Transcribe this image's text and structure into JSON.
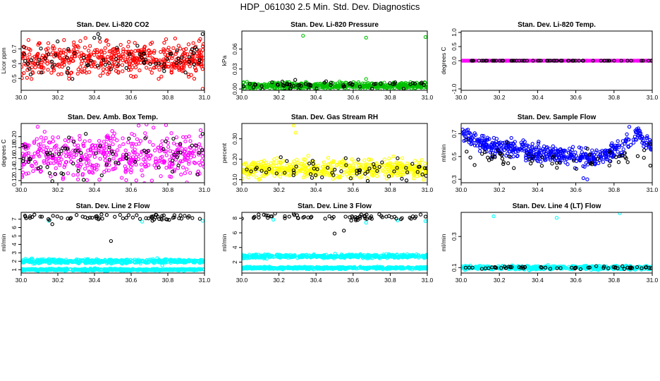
{
  "title": "HDP_061030  2.5 Min. Std. Dev. Diagnostics",
  "chart_data": [
    {
      "type": "scatter",
      "title": "Stan. Dev. Li-820 CO2",
      "ylabel": "Licor ppm",
      "xlim": [
        30.0,
        31.0
      ],
      "ylim": [
        0.42,
        0.82
      ],
      "xticks": [
        "30.0",
        "30.2",
        "30.4",
        "30.6",
        "30.8",
        "31.0"
      ],
      "yticks": [
        "0.5",
        "0.6",
        "0.7"
      ],
      "series": [
        {
          "color": "#ff0000",
          "count": 520,
          "baseline": [
            [
              30.0,
              0.62
            ],
            [
              30.5,
              0.63
            ],
            [
              31.0,
              0.64
            ]
          ],
          "spread": 0.055,
          "extra": [
            [
              30.04,
              0.76
            ],
            [
              30.62,
              0.74
            ],
            [
              30.84,
              0.77
            ],
            [
              30.99,
              0.43
            ],
            [
              30.48,
              0.54
            ],
            [
              30.22,
              0.53
            ]
          ]
        },
        {
          "color": "#000000",
          "count": 70,
          "baseline": [
            [
              30.0,
              0.62
            ],
            [
              31.0,
              0.63
            ]
          ],
          "spread": 0.06,
          "extra": [
            [
              30.42,
              0.8
            ],
            [
              30.99,
              0.8
            ],
            [
              30.11,
              0.54
            ],
            [
              30.78,
              0.55
            ]
          ]
        }
      ]
    },
    {
      "type": "scatter",
      "title": "Stan. Dev. Li-820 Pressure",
      "ylabel": "kPa",
      "xlim": [
        30.0,
        31.0
      ],
      "ylim": [
        -0.002,
        0.087
      ],
      "xticks": [
        "30.0",
        "30.2",
        "30.4",
        "30.6",
        "30.8",
        "31.0"
      ],
      "yticks": [
        "0.00",
        "0.03",
        "0.06"
      ],
      "series": [
        {
          "color": "#00c000",
          "count": 520,
          "baseline": [
            [
              30.0,
              0.0045
            ],
            [
              31.0,
              0.0055
            ]
          ],
          "spread": 0.0025,
          "extra": [
            [
              30.33,
              0.08
            ],
            [
              30.67,
              0.077
            ],
            [
              30.99,
              0.078
            ],
            [
              30.67,
              0.015
            ]
          ]
        },
        {
          "color": "#000000",
          "count": 60,
          "baseline": [
            [
              30.0,
              0.0045
            ],
            [
              31.0,
              0.006
            ]
          ],
          "spread": 0.003,
          "extra": []
        }
      ]
    },
    {
      "type": "scatter",
      "title": "Stan. Dev. Li-820 Temp.",
      "ylabel": "degrees C",
      "xlim": [
        30.0,
        31.0
      ],
      "ylim": [
        -1.05,
        1.05
      ],
      "xticks": [
        "30.0",
        "30.2",
        "30.4",
        "30.6",
        "30.8",
        "31.0"
      ],
      "yticks": [
        "-1.0",
        "0.0",
        "0.5",
        "1.0"
      ],
      "series": [
        {
          "color": "#ff00ff",
          "count": 400,
          "baseline": [
            [
              30.0,
              0.0
            ],
            [
              31.0,
              0.0
            ]
          ],
          "spread": 0.0,
          "extra": []
        },
        {
          "color": "#000000",
          "count": 70,
          "baseline": [
            [
              30.0,
              0.0
            ],
            [
              31.0,
              0.0
            ]
          ],
          "spread": 0.0,
          "extra": []
        }
      ]
    },
    {
      "type": "scatter",
      "title": "Stan. Dev. Amb. Box Temp.",
      "ylabel": "degrees C",
      "xlim": [
        30.0,
        31.0
      ],
      "ylim": [
        0.116,
        0.224
      ],
      "xticks": [
        "30.0",
        "30.2",
        "30.4",
        "30.6",
        "30.8",
        "31.0"
      ],
      "yticks": [
        "0.12",
        "0.14",
        "0.16",
        "0.18",
        "0.20"
      ],
      "series": [
        {
          "color": "#ff00ff",
          "count": 480,
          "baseline": [
            [
              30.0,
              0.165
            ],
            [
              31.0,
              0.166
            ]
          ],
          "spread": 0.02,
          "extra": [
            [
              30.09,
              0.218
            ],
            [
              30.79,
              0.221
            ],
            [
              30.31,
              0.122
            ]
          ]
        },
        {
          "color": "#000000",
          "count": 70,
          "baseline": [
            [
              30.0,
              0.165
            ],
            [
              31.0,
              0.167
            ]
          ],
          "spread": 0.021,
          "extra": [
            [
              30.17,
              0.119
            ],
            [
              30.99,
              0.205
            ]
          ]
        }
      ]
    },
    {
      "type": "scatter",
      "title": "Stan. Dev. Gas Stream RH",
      "ylabel": "percent",
      "xlim": [
        30.0,
        31.0
      ],
      "ylim": [
        0.085,
        0.375
      ],
      "xticks": [
        "30.0",
        "30.2",
        "30.4",
        "30.6",
        "30.8",
        "31.0"
      ],
      "yticks": [
        "0.10",
        "0.20",
        "0.30"
      ],
      "series": [
        {
          "color": "#ffff00",
          "count": 520,
          "baseline": [
            [
              30.0,
              0.15
            ],
            [
              31.0,
              0.155
            ]
          ],
          "spread": 0.022,
          "extra": [
            [
              30.28,
              0.365
            ],
            [
              30.29,
              0.33
            ],
            [
              30.98,
              0.1
            ]
          ]
        },
        {
          "color": "#000000",
          "count": 60,
          "baseline": [
            [
              30.0,
              0.15
            ],
            [
              31.0,
              0.155
            ]
          ],
          "spread": 0.025,
          "extra": [
            [
              30.21,
              0.21
            ],
            [
              30.56,
              0.205
            ],
            [
              30.84,
              0.205
            ]
          ]
        }
      ]
    },
    {
      "type": "scatter",
      "title": "Stan. Dev. Sample Flow",
      "ylabel": "ml/min",
      "xlim": [
        30.0,
        31.0
      ],
      "ylim": [
        0.27,
        0.79
      ],
      "xticks": [
        "30.0",
        "30.2",
        "30.4",
        "30.6",
        "30.8",
        "31.0"
      ],
      "yticks": [
        "0.3",
        "0.5",
        "0.7"
      ],
      "series": [
        {
          "color": "#0000ff",
          "count": 520,
          "baseline": [
            [
              30.0,
              0.72
            ],
            [
              30.1,
              0.61
            ],
            [
              30.3,
              0.56
            ],
            [
              30.5,
              0.52
            ],
            [
              30.7,
              0.48
            ],
            [
              30.85,
              0.59
            ],
            [
              30.92,
              0.7
            ],
            [
              31.0,
              0.58
            ]
          ],
          "spread": 0.038,
          "extra": [
            [
              30.64,
              0.31
            ],
            [
              30.66,
              0.3
            ],
            [
              30.88,
              0.76
            ]
          ]
        },
        {
          "color": "#000000",
          "count": 60,
          "baseline": [
            [
              30.0,
              0.55
            ],
            [
              30.5,
              0.45
            ],
            [
              31.0,
              0.5
            ]
          ],
          "spread": 0.05,
          "extra": [
            [
              30.99,
              0.42
            ]
          ]
        }
      ]
    },
    {
      "type": "scatter",
      "title": "Stan. Dev. Line 2 Flow",
      "ylabel": "ml/min",
      "xlim": [
        30.0,
        31.0
      ],
      "ylim": [
        0.6,
        7.8
      ],
      "xticks": [
        "30.0",
        "30.2",
        "30.4",
        "30.6",
        "30.8",
        "31.0"
      ],
      "yticks": [
        "1",
        "2",
        "3",
        "4",
        "5",
        "6",
        "7"
      ],
      "series": [
        {
          "color": "#00ffff",
          "count": 480,
          "baseline": [
            [
              30.0,
              2.0
            ],
            [
              31.0,
              2.0
            ]
          ],
          "spread": 0.12,
          "extra": [
            [
              30.77,
              1.5
            ],
            [
              30.66,
              6.7
            ],
            [
              30.99,
              6.8
            ],
            [
              30.15,
              6.8
            ]
          ]
        },
        {
          "color": "#00ffff",
          "count": 480,
          "baseline": [
            [
              30.0,
              1.0
            ],
            [
              31.0,
              1.0
            ]
          ],
          "spread": 0.06,
          "extra": []
        },
        {
          "color": "#000000",
          "count": 70,
          "baseline": [
            [
              30.0,
              7.25
            ],
            [
              31.0,
              7.25
            ]
          ],
          "spread": 0.18,
          "extra": [
            [
              30.49,
              4.4
            ],
            [
              30.17,
              6.4
            ]
          ]
        }
      ]
    },
    {
      "type": "scatter",
      "title": "Stan. Dev. Line 3 Flow",
      "ylabel": "ml/min",
      "xlim": [
        30.0,
        31.0
      ],
      "ylim": [
        0.5,
        8.8
      ],
      "xticks": [
        "30.0",
        "30.2",
        "30.4",
        "30.6",
        "30.8",
        "31.0"
      ],
      "yticks": [
        "2",
        "4",
        "6",
        "8"
      ],
      "series": [
        {
          "color": "#00ffff",
          "count": 480,
          "baseline": [
            [
              30.0,
              2.8
            ],
            [
              31.0,
              2.8
            ]
          ],
          "spread": 0.13,
          "extra": [
            [
              30.67,
              7.4
            ],
            [
              30.84,
              7.7
            ],
            [
              30.99,
              7.6
            ],
            [
              30.17,
              7.8
            ]
          ]
        },
        {
          "color": "#00ffff",
          "count": 480,
          "baseline": [
            [
              30.0,
              1.2
            ],
            [
              31.0,
              1.2
            ]
          ],
          "spread": 0.08,
          "extra": []
        },
        {
          "color": "#000000",
          "count": 70,
          "baseline": [
            [
              30.0,
              8.2
            ],
            [
              31.0,
              8.2
            ]
          ],
          "spread": 0.2,
          "extra": [
            [
              30.5,
              5.9
            ],
            [
              30.55,
              6.3
            ]
          ]
        }
      ]
    },
    {
      "type": "scatter",
      "title": "Stan. Dev. Line 4 (LT) Flow",
      "ylabel": "ml/min",
      "xlim": [
        30.0,
        31.0
      ],
      "ylim": [
        0.065,
        0.455
      ],
      "xticks": [
        "30.0",
        "30.2",
        "30.4",
        "30.6",
        "30.8",
        "31.0"
      ],
      "yticks": [
        "0.1",
        "0.3"
      ],
      "series": [
        {
          "color": "#00ffff",
          "count": 500,
          "baseline": [
            [
              30.0,
              0.1
            ],
            [
              31.0,
              0.1
            ]
          ],
          "spread": 0.006,
          "extra": [
            [
              30.17,
              0.43
            ],
            [
              30.5,
              0.42
            ],
            [
              30.83,
              0.45
            ]
          ]
        },
        {
          "color": "#000000",
          "count": 60,
          "baseline": [
            [
              30.0,
              0.1
            ],
            [
              31.0,
              0.1
            ]
          ],
          "spread": 0.005,
          "extra": []
        }
      ]
    }
  ]
}
